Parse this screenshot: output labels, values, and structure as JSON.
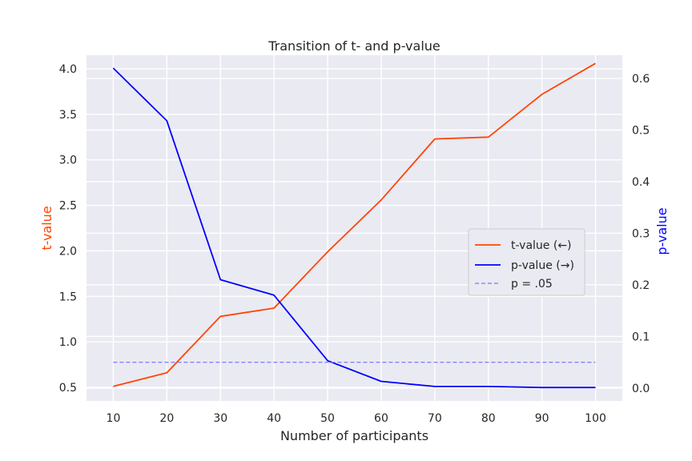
{
  "chart_data": {
    "type": "line",
    "title": "Transition of t- and p-value",
    "xlabel": "Number of participants",
    "ylabel_left": "t-value",
    "ylabel_right": "p-value",
    "x": [
      10,
      20,
      30,
      40,
      50,
      60,
      70,
      80,
      90,
      100
    ],
    "xticks": [
      "10",
      "20",
      "30",
      "40",
      "50",
      "60",
      "70",
      "80",
      "90",
      "100"
    ],
    "xlim": [
      5,
      105
    ],
    "ylim_left": [
      0.35,
      4.15
    ],
    "yticks_left": [
      "0.5",
      "1.0",
      "1.5",
      "2.0",
      "2.5",
      "3.0",
      "3.5",
      "4.0"
    ],
    "ylim_right": [
      -0.025,
      0.645
    ],
    "yticks_right": [
      "0.0",
      "0.1",
      "0.2",
      "0.3",
      "0.4",
      "0.5",
      "0.6"
    ],
    "grid": true,
    "legend_position": "center-right",
    "series": [
      {
        "name": "t-value (←)",
        "axis": "left",
        "color": "#ff4500",
        "style": "solid",
        "values": [
          0.51,
          0.66,
          1.28,
          1.37,
          1.99,
          2.56,
          3.23,
          3.25,
          3.72,
          4.06
        ]
      },
      {
        "name": "p-value (→)",
        "axis": "right",
        "color": "#0000ff",
        "style": "solid",
        "values": [
          0.62,
          0.518,
          0.21,
          0.18,
          0.053,
          0.013,
          0.003,
          0.003,
          0.001,
          0.001
        ]
      },
      {
        "name": "p = .05",
        "axis": "right",
        "color": "#7b7bff",
        "style": "dashed",
        "values": [
          0.05,
          0.05,
          0.05,
          0.05,
          0.05,
          0.05,
          0.05,
          0.05,
          0.05,
          0.05
        ]
      }
    ]
  }
}
